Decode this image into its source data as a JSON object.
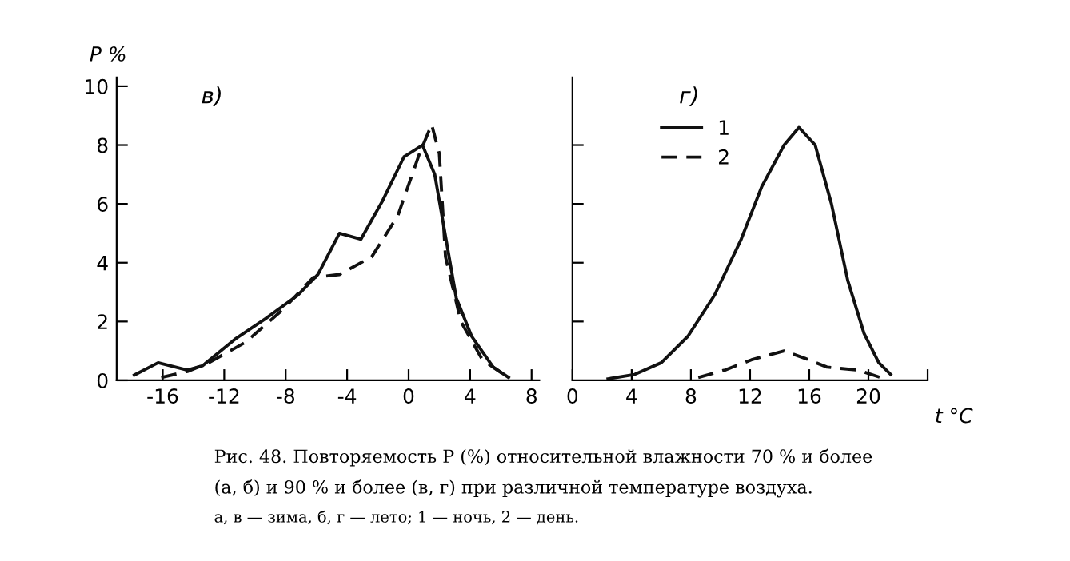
{
  "chart_data": [
    {
      "type": "line",
      "ylabel": "P %",
      "annotations": [
        "в)"
      ],
      "xlim": [
        -19,
        8.5
      ],
      "ylim": [
        0,
        10.3
      ],
      "xticks": [
        -16,
        -12,
        -8,
        -4,
        0,
        4,
        8
      ],
      "yticks": [
        0,
        2,
        4,
        6,
        8,
        10
      ],
      "legend": false,
      "series": [
        {
          "color": "#111111",
          "line_style": "solid",
          "x": [
            -17.85,
            -16.3,
            -14.4,
            -13.4,
            -11.3,
            -9.3,
            -7.2,
            -5.9,
            -4.5,
            -3.1,
            -1.7,
            -0.3,
            0.9,
            1.7,
            2.4,
            3.1,
            4.1,
            5.5,
            6.5
          ],
          "values": [
            0.18,
            0.6,
            0.35,
            0.5,
            1.4,
            2.1,
            2.9,
            3.6,
            5.0,
            4.8,
            6.1,
            7.6,
            8.0,
            7.0,
            4.9,
            2.8,
            1.5,
            0.45,
            0.1
          ]
        },
        {
          "color": "#111111",
          "line_style": "dashed",
          "x": [
            -16.1,
            -14.4,
            -13.0,
            -10.6,
            -8.2,
            -6.2,
            -4.5,
            -2.4,
            -0.7,
            0.7,
            1.5,
            2.0,
            2.4,
            3.4,
            4.8,
            6.2
          ],
          "values": [
            0.1,
            0.3,
            0.6,
            1.3,
            2.4,
            3.5,
            3.6,
            4.2,
            5.6,
            7.7,
            8.7,
            7.7,
            4.2,
            2.0,
            0.7,
            0.2
          ]
        }
      ]
    },
    {
      "type": "line",
      "xlabel": "t °C",
      "annotations": [
        "г)",
        "Рис. 48. Повторяемость P (%) относительной влажности 70 % и более",
        "(а, б) и 90 % и более (в, г) при различной температуре воздуха.",
        "а, в — зима, б, г — лето; 1 — ночь, 2 — день."
      ],
      "xlim": [
        0,
        24
      ],
      "ylim": [
        0,
        10.3
      ],
      "xticks": [
        0,
        4,
        8,
        12,
        16,
        20,
        {
          "value": 24,
          "label": null
        }
      ],
      "yticks": [
        {
          "value": 2,
          "label": null
        },
        {
          "value": 4,
          "label": null
        },
        {
          "value": 6,
          "label": null
        },
        {
          "value": 8,
          "label": null
        }
      ],
      "tick_labels": "x",
      "legend": "top left",
      "series": [
        {
          "name": "1",
          "color": "#111111",
          "line_style": "solid",
          "x": [
            2.4,
            4.2,
            6.0,
            7.8,
            9.6,
            11.4,
            12.8,
            14.3,
            15.3,
            16.4,
            17.5,
            18.6,
            19.7,
            20.7,
            21.5
          ],
          "values": [
            0.05,
            0.2,
            0.6,
            1.5,
            2.9,
            4.8,
            6.6,
            8.0,
            8.6,
            8.0,
            6.0,
            3.4,
            1.6,
            0.6,
            0.2
          ]
        },
        {
          "name": "2",
          "color": "#111111",
          "line_style": "dashed",
          "x": [
            8.5,
            10.3,
            12.1,
            14.3,
            15.7,
            17.2,
            19.3,
            21.1
          ],
          "values": [
            0.1,
            0.35,
            0.7,
            1.0,
            0.75,
            0.45,
            0.35,
            0.05
          ]
        }
      ]
    }
  ]
}
